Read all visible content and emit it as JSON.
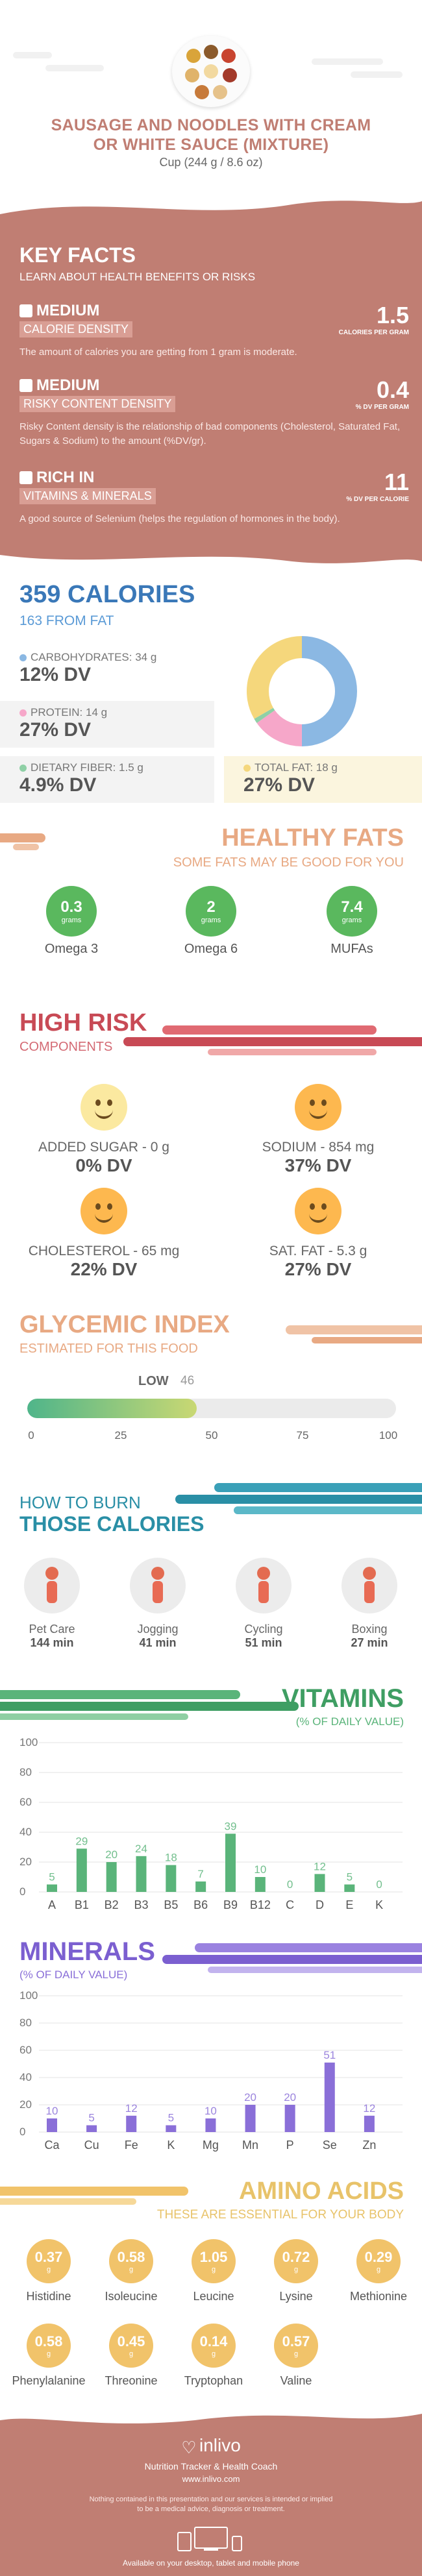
{
  "header": {
    "title_line1": "SAUSAGE AND NOODLES WITH CREAM",
    "title_line2": "OR WHITE SAUCE (MIXTURE)",
    "serving": "Cup (244 g / 8.6 oz)"
  },
  "key_facts": {
    "heading": "KEY FACTS",
    "subheading": "LEARN ABOUT HEALTH BENEFITS OR RISKS",
    "facts": [
      {
        "level": "MEDIUM",
        "tag": "CALORIE DENSITY",
        "value": "1.5",
        "unit": "CALORIES PER GRAM",
        "desc": "The amount of calories you are getting from 1 gram is moderate."
      },
      {
        "level": "MEDIUM",
        "tag": "RISKY CONTENT DENSITY",
        "value": "0.4",
        "unit": "% DV PER GRAM",
        "desc": "Risky Content density is the relationship of bad components (Cholesterol, Saturated Fat, Sugars & Sodium) to the amount (%DV/gr)."
      },
      {
        "level": "RICH  IN",
        "tag": "VITAMINS & MINERALS",
        "value": "11",
        "unit": "% DV PER CALORIE",
        "desc": "A good source of Selenium (helps the regulation of hormones in the body)."
      }
    ]
  },
  "calories": {
    "title": "359 CALORIES",
    "from_fat": "163 FROM FAT",
    "carbs_label": "CARBOHYDRATES: 34 g",
    "carbs_dv": "12% DV",
    "protein_label": "PROTEIN: 14 g",
    "protein_dv": "27% DV",
    "fiber_label": "DIETARY FIBER: 1.5 g",
    "fiber_dv": "4.9% DV",
    "fat_label": "TOTAL FAT: 18 g",
    "fat_dv": "27% DV",
    "colors": {
      "carbs": "#8bb8e3",
      "protein": "#f6a7c9",
      "fiber": "#8fd0a6",
      "fat": "#f5d77c"
    }
  },
  "healthy_fats": {
    "title": "HEALTHY FATS",
    "subtitle": "SOME FATS MAY BE GOOD FOR YOU",
    "items": [
      {
        "value": "0.3",
        "unit": "grams",
        "name": "Omega 3"
      },
      {
        "value": "2",
        "unit": "grams",
        "name": "Omega 6"
      },
      {
        "value": "7.4",
        "unit": "grams",
        "name": "MUFAs"
      }
    ]
  },
  "high_risk": {
    "title": "HIGH RISK",
    "subtitle": "COMPONENTS",
    "items": [
      {
        "label": "ADDED SUGAR - 0 g",
        "dv": "0% DV"
      },
      {
        "label": "SODIUM - 854 mg",
        "dv": "37% DV"
      },
      {
        "label": "CHOLESTEROL - 65 mg",
        "dv": "22% DV"
      },
      {
        "label": "SAT. FAT - 5.3 g",
        "dv": "27% DV"
      }
    ]
  },
  "glycemic": {
    "title": "GLYCEMIC INDEX",
    "subtitle": "ESTIMATED FOR THIS FOOD",
    "level": "LOW",
    "value": 46,
    "value_text": "46",
    "ticks": [
      "0",
      "25",
      "50",
      "75",
      "100"
    ]
  },
  "burn": {
    "title1": "HOW TO BURN",
    "title2": "THOSE CALORIES",
    "activities": [
      {
        "name": "Pet Care",
        "minutes": "144 min"
      },
      {
        "name": "Jogging",
        "minutes": "41 min"
      },
      {
        "name": "Cycling",
        "minutes": "51 min"
      },
      {
        "name": "Boxing",
        "minutes": "27 min"
      }
    ]
  },
  "vitamins": {
    "title": "VITAMINS",
    "subtitle": "(% OF DAILY VALUE)",
    "color": "#5ab47a",
    "chart_data": {
      "type": "bar",
      "categories": [
        "A",
        "B1",
        "B2",
        "B3",
        "B5",
        "B6",
        "B9",
        "B12",
        "C",
        "D",
        "E",
        "K"
      ],
      "values": [
        5,
        29,
        20,
        24,
        18,
        7,
        39,
        10,
        0,
        12,
        5,
        0
      ],
      "ylim": [
        0,
        100
      ],
      "yticks": [
        "0",
        "20",
        "40",
        "60",
        "80",
        "100"
      ]
    }
  },
  "minerals": {
    "title": "MINERALS",
    "subtitle": "(% OF DAILY VALUE)",
    "color": "#8a6fd8",
    "chart_data": {
      "type": "bar",
      "categories": [
        "Ca",
        "Cu",
        "Fe",
        "K",
        "Mg",
        "Mn",
        "P",
        "Se",
        "Zn"
      ],
      "values": [
        10,
        5,
        12,
        5,
        10,
        20,
        20,
        51,
        12
      ],
      "ylim": [
        0,
        100
      ],
      "yticks": [
        "0",
        "20",
        "40",
        "60",
        "80",
        "100"
      ]
    }
  },
  "amino": {
    "title": "AMINO ACIDS",
    "subtitle": "THESE ARE ESSENTIAL FOR YOUR BODY",
    "unit": "g",
    "items": [
      {
        "value": "0.37",
        "name": "Histidine"
      },
      {
        "value": "0.58",
        "name": "Isoleucine"
      },
      {
        "value": "1.05",
        "name": "Leucine"
      },
      {
        "value": "0.72",
        "name": "Lysine"
      },
      {
        "value": "0.29",
        "name": "Methionine"
      },
      {
        "value": "0.58",
        "name": "Phenylalanine"
      },
      {
        "value": "0.45",
        "name": "Threonine"
      },
      {
        "value": "0.14",
        "name": "Tryptophan"
      },
      {
        "value": "0.57",
        "name": "Valine"
      }
    ]
  },
  "footer": {
    "brand": "inlivo",
    "tagline": "Nutrition Tracker & Health Coach",
    "url": "www.inlivo.com",
    "disclaimer1": "Nothing contained in this presentation and our services is intended or implied",
    "disclaimer2": "to be a medical advice, diagnosis or treatment.",
    "available": "Available on your desktop, tablet and mobile phone"
  }
}
